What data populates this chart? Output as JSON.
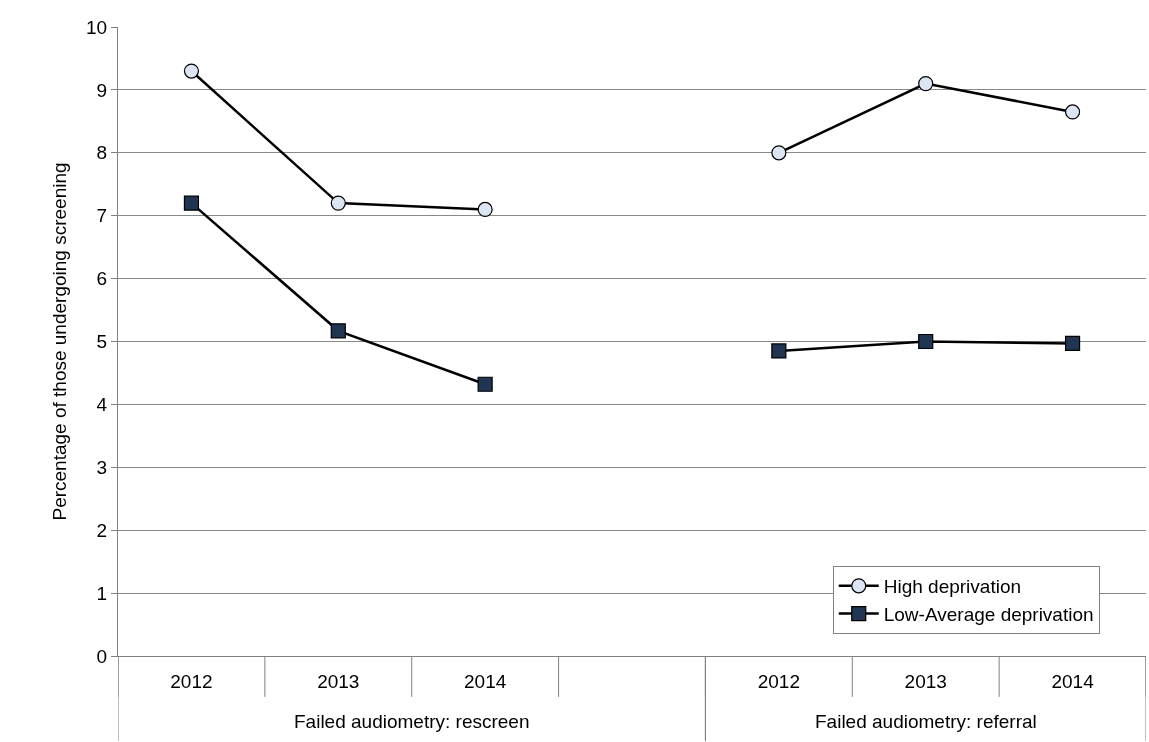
{
  "chart_data": {
    "type": "line",
    "ylabel": "Percentage of those undergoing screening",
    "categories": [
      "2012",
      "2013",
      "2014",
      null,
      "2012",
      "2013",
      "2014"
    ],
    "series": [
      {
        "name": "High deprivation",
        "color": "#dce6f2",
        "marker": "circle",
        "values": [
          9.3,
          7.2,
          7.1,
          null,
          8.0,
          9.1,
          8.65
        ]
      },
      {
        "name": "Low-Average deprivation",
        "color": "#1f3552",
        "marker": "square",
        "values": [
          7.2,
          5.17,
          4.32,
          null,
          4.85,
          5.0,
          4.97
        ]
      }
    ],
    "annotations": [
      "Failed audiometry: rescreen",
      "Failed audiometry: referral"
    ],
    "ylim": [
      0,
      10
    ],
    "yticks": [
      0,
      1,
      2,
      3,
      4,
      5,
      6,
      7,
      8,
      9,
      10
    ],
    "grid": "y",
    "legend": "bottom right",
    "line_style": "solid"
  }
}
